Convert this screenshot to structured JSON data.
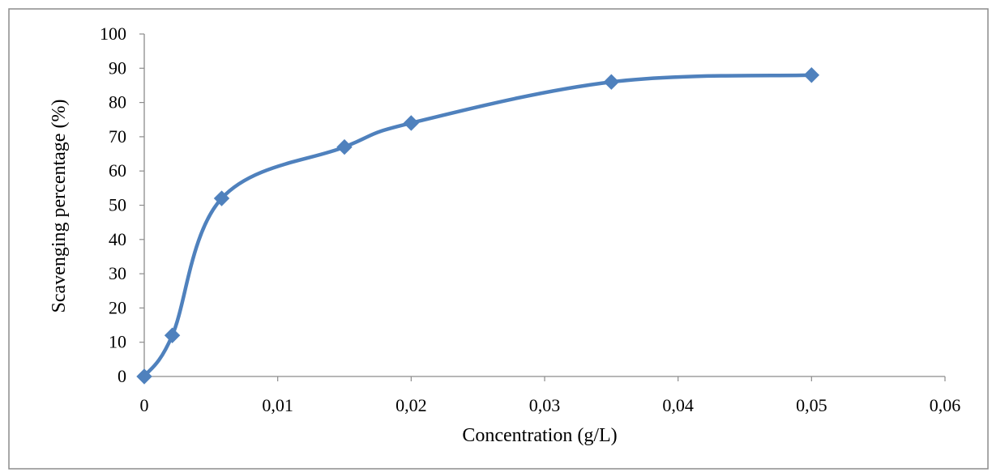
{
  "chart_data": {
    "type": "line",
    "title": "",
    "xlabel": "Concentration (g/L)",
    "ylabel": "Scavenging percentage (%)",
    "xlim": [
      0,
      0.06
    ],
    "ylim": [
      0,
      100
    ],
    "x_ticks": [
      0,
      0.01,
      0.02,
      0.03,
      0.04,
      0.05,
      0.06
    ],
    "x_tick_labels": [
      "0",
      "0,01",
      "0,02",
      "0,03",
      "0,04",
      "0,05",
      "0,06"
    ],
    "y_ticks": [
      0,
      10,
      20,
      30,
      40,
      50,
      60,
      70,
      80,
      90,
      100
    ],
    "y_tick_labels": [
      "0",
      "10",
      "20",
      "30",
      "40",
      "50",
      "60",
      "70",
      "80",
      "90",
      "100"
    ],
    "grid": false,
    "legend": "none",
    "smooth": true,
    "marker": "diamond",
    "series": [
      {
        "color": "#4F81BD",
        "x": [
          0,
          0.0021,
          0.0058,
          0.015,
          0.02,
          0.035,
          0.05
        ],
        "y": [
          0,
          12,
          52,
          67,
          74,
          86,
          88
        ]
      }
    ]
  }
}
